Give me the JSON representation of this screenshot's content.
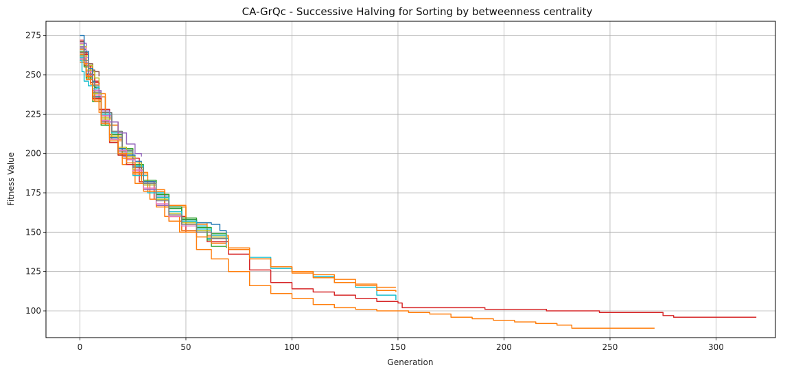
{
  "chart_data": {
    "type": "line",
    "title": "CA-GrQc - Successive Halving for Sorting by betweenness centrality",
    "xlabel": "Generation",
    "ylabel": "Fitness Value",
    "xlim": [
      -16,
      328
    ],
    "ylim": [
      83,
      284
    ],
    "x_ticks": [
      0,
      50,
      100,
      150,
      200,
      250,
      300
    ],
    "y_ticks": [
      100,
      125,
      150,
      175,
      200,
      225,
      250,
      275
    ],
    "grid": true,
    "legend": "none",
    "colors": [
      "#1f77b4",
      "#ff7f0e",
      "#2ca02c",
      "#d62728",
      "#9467bd",
      "#8c564b",
      "#e377c2",
      "#7f7f7f",
      "#bcbd22",
      "#17becf"
    ],
    "series": [
      {
        "color": "#d62728",
        "x": [
          0,
          2,
          5,
          9,
          14,
          20,
          28,
          35,
          42,
          50,
          60,
          70,
          80,
          90,
          100,
          110,
          120,
          130,
          140,
          150,
          152,
          160,
          180,
          191,
          200,
          210,
          220,
          230,
          240,
          245,
          260,
          273,
          275,
          280,
          300,
          319
        ],
        "y": [
          262,
          256,
          245,
          228,
          212,
          197,
          182,
          171,
          160,
          150,
          144,
          136,
          126,
          118,
          114,
          112,
          110,
          108,
          106,
          105,
          102,
          102,
          102,
          101,
          101,
          101,
          100,
          100,
          100,
          99,
          99,
          99,
          97,
          96,
          96,
          96
        ]
      },
      {
        "color": "#ff7f0e",
        "x": [
          0,
          2,
          5,
          9,
          14,
          20,
          26,
          33,
          40,
          47,
          55,
          62,
          70,
          80,
          90,
          100,
          110,
          120,
          130,
          140,
          150,
          155,
          165,
          175,
          185,
          195,
          205,
          215,
          225,
          232,
          240,
          255,
          271
        ],
        "y": [
          262,
          255,
          244,
          226,
          208,
          193,
          181,
          171,
          160,
          150,
          139,
          133,
          125,
          116,
          111,
          108,
          104,
          102,
          101,
          100,
          100,
          99,
          98,
          96,
          95,
          94,
          93,
          92,
          91,
          89,
          89,
          89,
          89
        ]
      },
      {
        "color": "#17becf",
        "x": [
          0,
          3,
          7,
          12,
          18,
          25,
          32,
          40,
          50,
          60,
          70,
          80,
          90,
          100,
          110,
          120,
          130,
          140,
          149
        ],
        "y": [
          258,
          250,
          236,
          218,
          200,
          186,
          175,
          166,
          154,
          146,
          140,
          134,
          127,
          125,
          122,
          118,
          115,
          110,
          107
        ]
      },
      {
        "color": "#ff7f0e",
        "x": [
          0,
          3,
          7,
          12,
          18,
          25,
          32,
          40,
          50,
          60,
          70,
          80,
          90,
          100,
          110,
          120,
          130,
          140,
          149
        ],
        "y": [
          260,
          252,
          238,
          220,
          203,
          188,
          177,
          167,
          156,
          148,
          140,
          133,
          128,
          125,
          123,
          120,
          117,
          115,
          115
        ]
      },
      {
        "color": "#ff7f0e",
        "x": [
          0,
          3,
          7,
          12,
          18,
          25,
          32,
          40,
          50,
          60,
          70,
          80,
          90,
          100,
          110,
          120,
          130,
          140,
          149
        ],
        "y": [
          259,
          250,
          236,
          218,
          202,
          187,
          176,
          166,
          155,
          147,
          139,
          133,
          128,
          124,
          121,
          118,
          116,
          113,
          112
        ]
      },
      {
        "color": "#1f77b4",
        "x": [
          0,
          3,
          6,
          10,
          15,
          20,
          25,
          30,
          36,
          42,
          48,
          55,
          62,
          66,
          69
        ],
        "y": [
          258,
          247,
          236,
          224,
          212,
          201,
          190,
          180,
          171,
          165,
          158,
          156,
          155,
          151,
          148
        ]
      },
      {
        "color": "#1f77b4",
        "x": [
          0,
          3,
          6,
          10,
          15,
          20,
          25,
          30,
          36,
          42,
          48,
          55,
          62,
          69
        ],
        "y": [
          260,
          249,
          238,
          226,
          213,
          202,
          192,
          182,
          173,
          166,
          158,
          150,
          147,
          145
        ]
      },
      {
        "color": "#2ca02c",
        "x": [
          0,
          3,
          6,
          10,
          15,
          20,
          25,
          30,
          36,
          42,
          48,
          55,
          60,
          62,
          69
        ],
        "y": [
          259,
          248,
          237,
          225,
          212,
          201,
          191,
          181,
          172,
          165,
          158,
          152,
          145,
          141,
          140
        ]
      },
      {
        "color": "#2ca02c",
        "x": [
          0,
          3,
          6,
          10,
          15,
          20,
          25,
          30,
          36,
          42,
          48,
          55,
          62,
          69
        ],
        "y": [
          261,
          250,
          239,
          226,
          214,
          203,
          193,
          183,
          174,
          166,
          159,
          153,
          149,
          146
        ]
      },
      {
        "color": "#9467bd",
        "x": [
          0,
          3,
          6,
          10,
          15,
          20,
          25,
          30,
          36,
          42,
          48,
          55,
          62,
          69
        ],
        "y": [
          262,
          251,
          238,
          224,
          210,
          198,
          187,
          177,
          167,
          157,
          151,
          147,
          143,
          141
        ]
      },
      {
        "color": "#ff7f0e",
        "x": [
          0,
          3,
          6,
          10,
          15,
          20,
          25,
          30,
          36,
          42,
          48,
          55,
          62,
          69
        ],
        "y": [
          258,
          247,
          235,
          222,
          209,
          197,
          187,
          176,
          166,
          157,
          151,
          147,
          143,
          141
        ]
      },
      {
        "color": "#e377c2",
        "x": [
          0,
          3,
          6,
          10,
          15,
          20,
          25,
          30,
          36,
          42,
          48,
          55,
          62,
          69
        ],
        "y": [
          260,
          249,
          237,
          224,
          211,
          199,
          189,
          178,
          168,
          160,
          154,
          150,
          146,
          144
        ]
      },
      {
        "color": "#bcbd22",
        "x": [
          0,
          3,
          6,
          10,
          15,
          20,
          25,
          30,
          36,
          42,
          48,
          55,
          62,
          69
        ],
        "y": [
          259,
          248,
          236,
          223,
          211,
          200,
          190,
          180,
          171,
          162,
          156,
          151,
          147,
          144
        ]
      },
      {
        "color": "#17becf",
        "x": [
          0,
          3,
          6,
          10,
          15,
          20,
          25,
          30,
          36,
          42,
          48,
          55,
          62,
          69
        ],
        "y": [
          261,
          250,
          238,
          225,
          213,
          202,
          192,
          181,
          172,
          163,
          157,
          152,
          148,
          142
        ]
      },
      {
        "color": "#7f7f7f",
        "x": [
          0,
          3,
          6,
          10,
          15,
          20,
          25,
          30,
          36,
          42,
          48,
          55,
          62,
          69
        ],
        "y": [
          262,
          251,
          239,
          226,
          214,
          202,
          191,
          181,
          170,
          161,
          155,
          150,
          146,
          143
        ]
      },
      {
        "color": "#9467bd",
        "x": [
          0,
          3,
          6,
          10,
          14,
          18,
          22,
          26,
          29
        ],
        "y": [
          270,
          256,
          240,
          227,
          220,
          213,
          206,
          200,
          198
        ]
      },
      {
        "color": "#1f77b4",
        "x": [
          0,
          3,
          6,
          10,
          14,
          18,
          22,
          26,
          29
        ],
        "y": [
          266,
          251,
          236,
          221,
          210,
          203,
          199,
          195,
          192
        ]
      },
      {
        "color": "#bcbd22",
        "x": [
          0,
          3,
          6,
          10,
          14,
          18,
          22,
          26,
          29
        ],
        "y": [
          268,
          253,
          238,
          222,
          211,
          204,
          198,
          194,
          190
        ]
      },
      {
        "color": "#8c564b",
        "x": [
          0,
          3,
          6,
          10,
          14,
          18,
          22,
          26,
          29
        ],
        "y": [
          264,
          250,
          235,
          220,
          208,
          201,
          196,
          191,
          188
        ]
      },
      {
        "color": "#e377c2",
        "x": [
          0,
          3,
          6,
          10,
          14,
          18,
          22,
          26,
          29
        ],
        "y": [
          267,
          252,
          237,
          221,
          209,
          202,
          196,
          190,
          185
        ]
      },
      {
        "color": "#2ca02c",
        "x": [
          0,
          3,
          6,
          10,
          14,
          18,
          22,
          26,
          29
        ],
        "y": [
          262,
          248,
          233,
          218,
          207,
          199,
          193,
          188,
          183
        ]
      },
      {
        "color": "#d62728",
        "x": [
          0,
          3,
          6,
          10,
          14,
          18,
          22,
          26,
          29
        ],
        "y": [
          265,
          250,
          235,
          219,
          207,
          199,
          193,
          188,
          184
        ]
      },
      {
        "color": "#ff7f0e",
        "x": [
          0,
          3,
          6,
          10,
          14,
          18,
          22,
          26,
          29
        ],
        "y": [
          263,
          249,
          234,
          219,
          208,
          200,
          194,
          188,
          182
        ]
      },
      {
        "color": "#8c564b",
        "x": [
          0,
          2,
          4,
          6,
          7,
          9
        ],
        "y": [
          271,
          264,
          257,
          253,
          252,
          249
        ]
      },
      {
        "color": "#d62728",
        "x": [
          0,
          2,
          4,
          6,
          7,
          9
        ],
        "y": [
          272,
          263,
          255,
          250,
          246,
          244
        ]
      },
      {
        "color": "#bcbd22",
        "x": [
          0,
          2,
          4,
          6,
          7,
          9
        ],
        "y": [
          269,
          262,
          256,
          252,
          248,
          245
        ]
      },
      {
        "color": "#e377c2",
        "x": [
          0,
          2,
          4,
          6,
          7,
          9
        ],
        "y": [
          270,
          261,
          252,
          246,
          240,
          237
        ]
      },
      {
        "color": "#1f77b4",
        "x": [
          0,
          2,
          4,
          6,
          7,
          9
        ],
        "y": [
          275,
          265,
          254,
          246,
          242,
          240
        ]
      },
      {
        "color": "#9467bd",
        "x": [
          0,
          2,
          4,
          6,
          7,
          9
        ],
        "y": [
          268,
          258,
          250,
          244,
          241,
          238
        ]
      },
      {
        "color": "#2ca02c",
        "x": [
          0,
          2,
          4,
          6,
          7,
          9
        ],
        "y": [
          265,
          255,
          248,
          243,
          242,
          241
        ]
      },
      {
        "color": "#17becf",
        "x": [
          0,
          1,
          2,
          4,
          6,
          8,
          9
        ],
        "y": [
          259,
          252,
          246,
          243,
          241,
          242,
          243
        ]
      },
      {
        "color": "#ff7f0e",
        "x": [
          0,
          2,
          4,
          6,
          7,
          9
        ],
        "y": [
          266,
          257,
          247,
          237,
          233,
          232
        ]
      },
      {
        "color": "#7f7f7f",
        "x": [
          0,
          2,
          4,
          6,
          7,
          9
        ],
        "y": [
          267,
          259,
          251,
          245,
          243,
          243
        ]
      }
    ]
  }
}
